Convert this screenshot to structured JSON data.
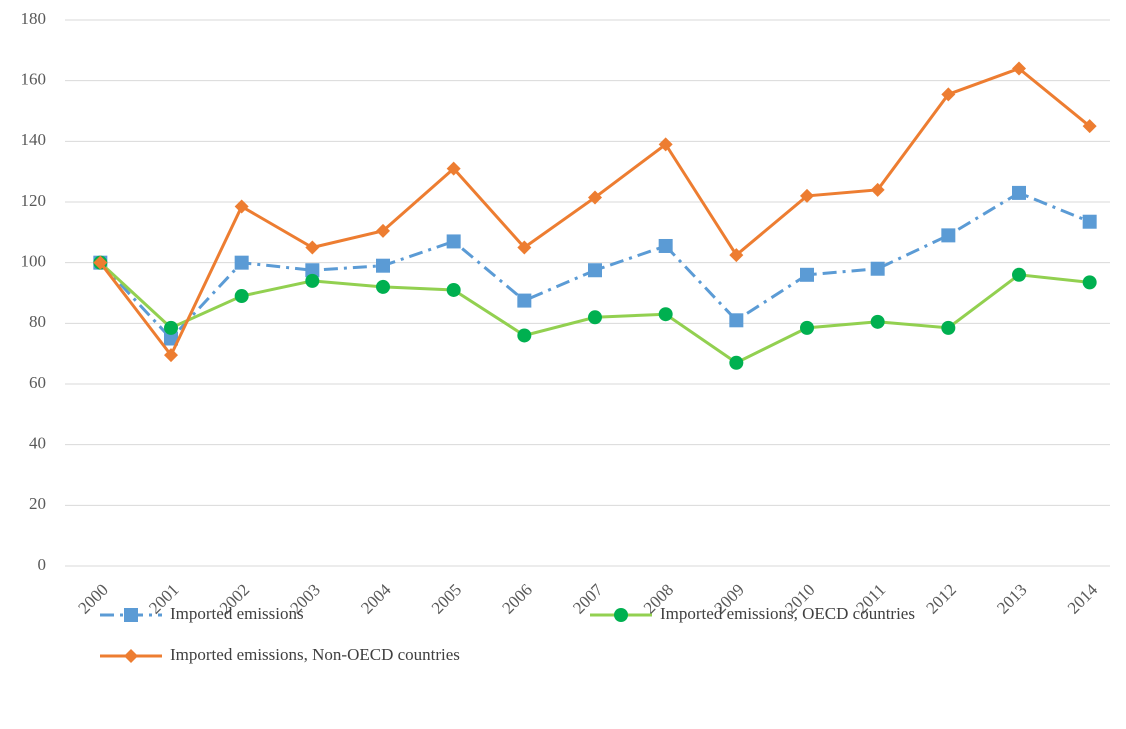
{
  "chart_data": {
    "type": "line",
    "categories": [
      "2000",
      "2001",
      "2002",
      "2003",
      "2004",
      "2005",
      "2006",
      "2007",
      "2008",
      "2009",
      "2010",
      "2011",
      "2012",
      "2013",
      "2014"
    ],
    "series": [
      {
        "name": "Imported emissions",
        "color": "#5b9bd5",
        "marker_color": "#5b9bd5",
        "marker": "square",
        "dash": "dashdot",
        "values": [
          100,
          75,
          100,
          97.5,
          99,
          107,
          87.5,
          97.5,
          105.5,
          81,
          96,
          98,
          109,
          123,
          113.5
        ]
      },
      {
        "name": "Imported emissions, OECD countries",
        "color": "#92d050",
        "marker_color": "#00b050",
        "marker": "circle",
        "dash": "solid",
        "values": [
          100,
          78.5,
          89,
          94,
          92,
          91,
          76,
          82,
          83,
          67,
          78.5,
          80.5,
          78.5,
          96,
          93.5
        ]
      },
      {
        "name": "Imported emissions, Non-OECD countries",
        "color": "#ed7d31",
        "marker_color": "#ed7d31",
        "marker": "diamond",
        "dash": "solid",
        "values": [
          100,
          69.5,
          118.5,
          105,
          110.5,
          131,
          105,
          121.5,
          139,
          102.5,
          122,
          124,
          155.5,
          164,
          145
        ]
      }
    ],
    "ylim": [
      0,
      180
    ],
    "yticks": [
      0,
      20,
      40,
      60,
      80,
      100,
      120,
      140,
      160,
      180
    ],
    "grid": true,
    "legend": "bottom"
  }
}
